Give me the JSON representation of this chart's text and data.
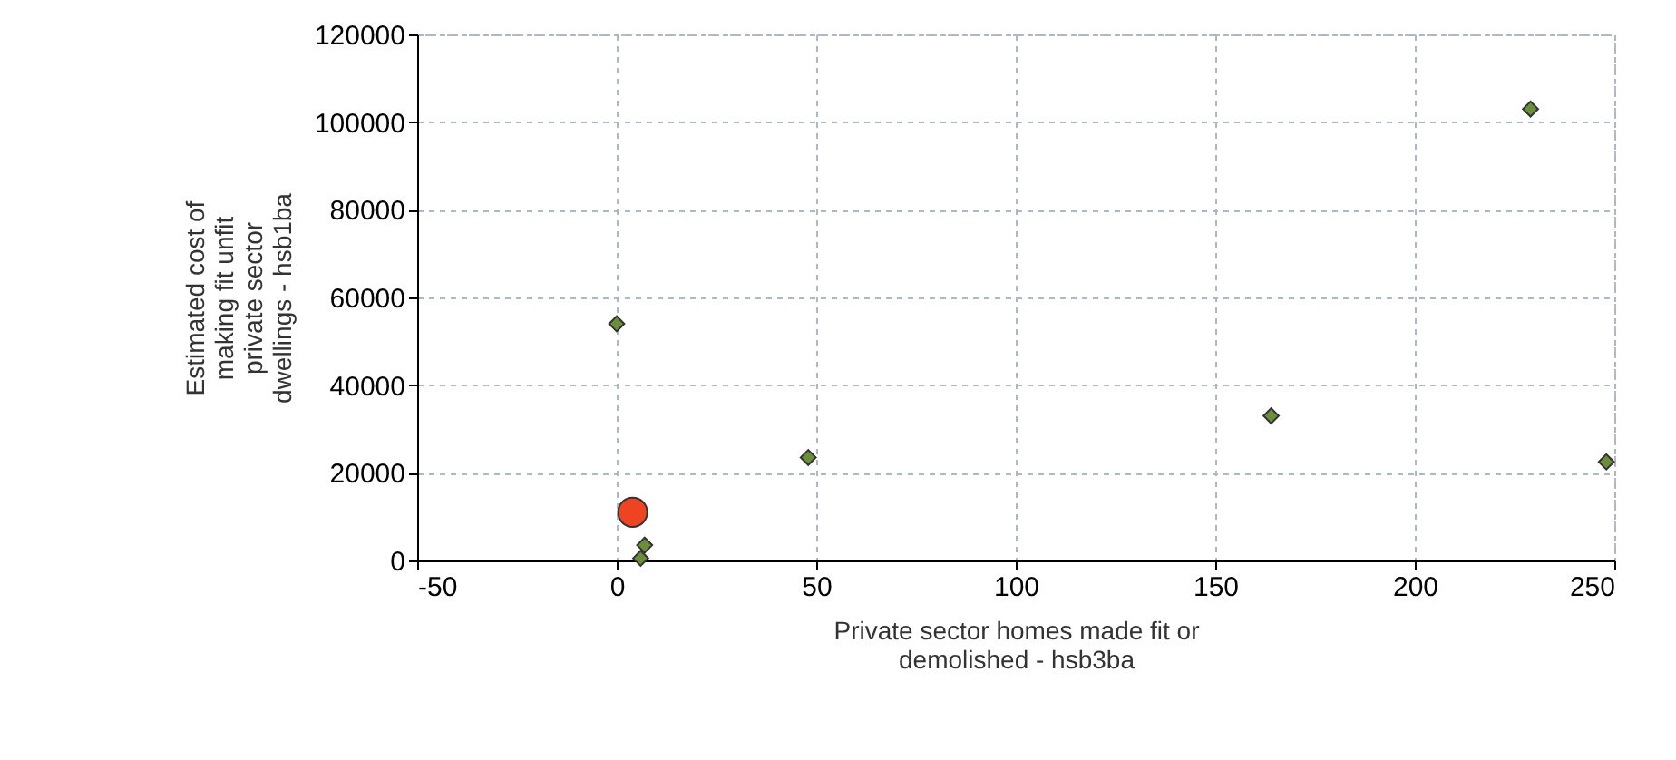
{
  "chart_data": {
    "type": "scatter",
    "xlabel": "Private sector homes made fit or demolished - hsb3ba",
    "ylabel": "Estimated cost of making fit unfit private sector dwellings - hsb1ba",
    "xlim": [
      -50,
      250
    ],
    "xticks": [
      -50,
      0,
      50,
      100,
      150,
      200,
      250
    ],
    "ylim": [
      0,
      120000
    ],
    "yticks": [
      0,
      20000,
      40000,
      60000,
      80000,
      100000,
      120000
    ],
    "grid": true,
    "series": [
      {
        "color": "#6b8e3a",
        "marker": "diamond",
        "x": [
          0,
          48,
          7,
          6,
          164,
          229,
          248
        ],
        "values": [
          54000,
          23500,
          3500,
          500,
          33000,
          103000,
          22500
        ]
      },
      {
        "color": "#ee4422",
        "marker": "circle",
        "x": [
          4
        ],
        "values": [
          11000
        ]
      }
    ]
  }
}
